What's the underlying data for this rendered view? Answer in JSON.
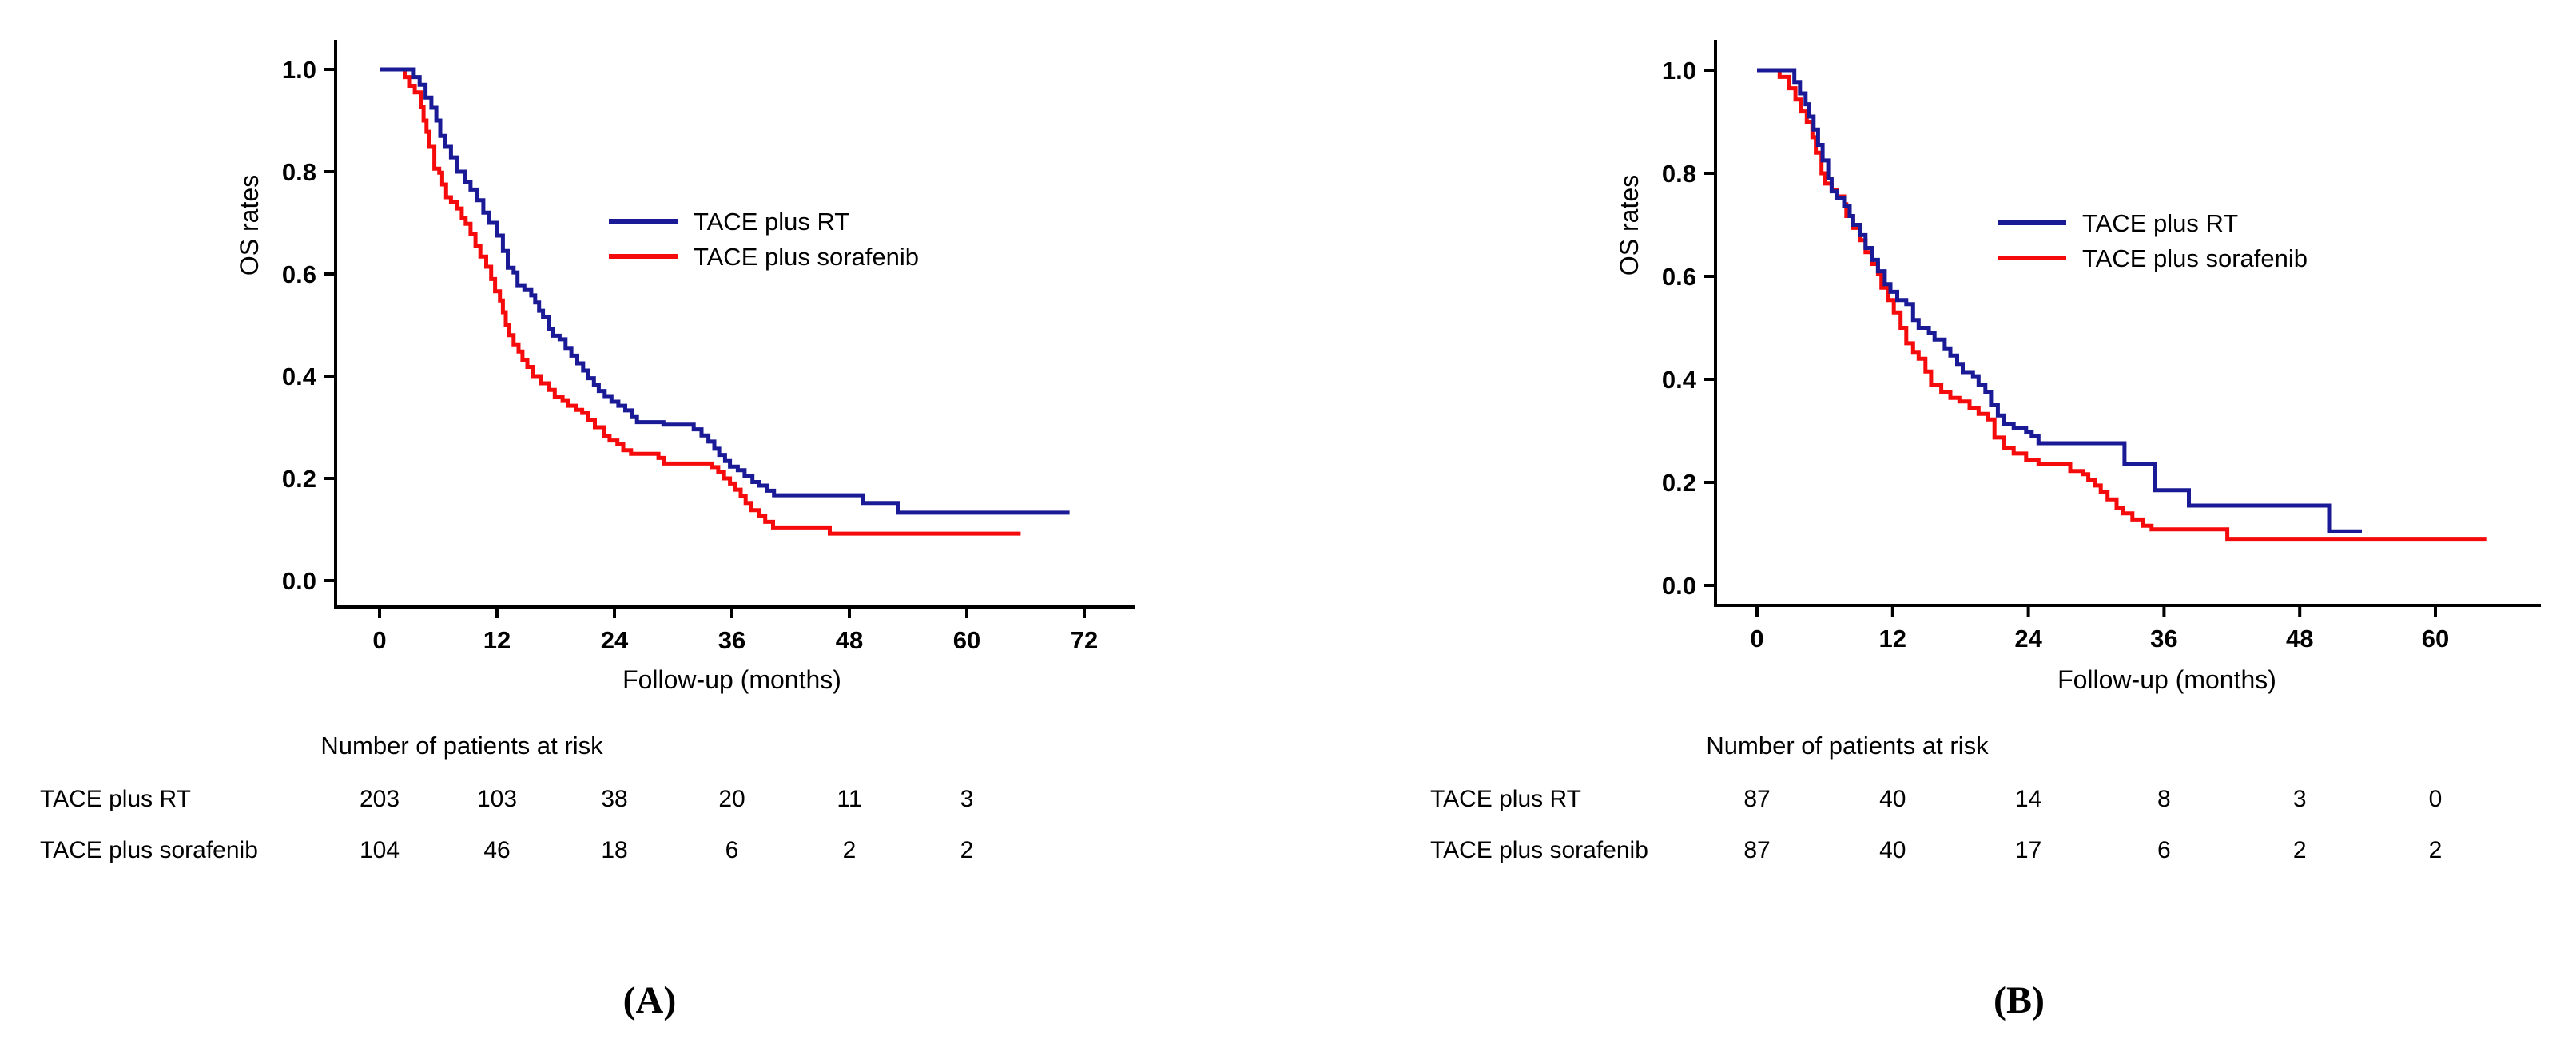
{
  "figure_title": "",
  "chart_data": [
    {
      "type": "line",
      "subtype": "kaplan-meier-step",
      "panel_label": "(A)",
      "xlabel": "Follow-up (months)",
      "ylabel": "OS rates",
      "xlim": [
        0,
        77
      ],
      "ylim": [
        0.0,
        1.05
      ],
      "grid": false,
      "legend_position": "inside-upper-right",
      "x_ticks": [
        "0",
        "12",
        "24",
        "36",
        "48",
        "60",
        "72"
      ],
      "y_ticks": [
        "1.0",
        "0.8",
        "0.6",
        "0.4",
        "0.2",
        "0.0"
      ],
      "series": [
        {
          "name": "TACE plus RT",
          "color": "#1a1a96",
          "points": [
            [
              0,
              1.0
            ],
            [
              3,
              1.0
            ],
            [
              3.5,
              0.985
            ],
            [
              4.1,
              0.97
            ],
            [
              4.7,
              0.945
            ],
            [
              5.3,
              0.925
            ],
            [
              5.8,
              0.9
            ],
            [
              6.2,
              0.87
            ],
            [
              6.7,
              0.85
            ],
            [
              7.3,
              0.828
            ],
            [
              7.9,
              0.8
            ],
            [
              8.7,
              0.78
            ],
            [
              9.3,
              0.765
            ],
            [
              10,
              0.744
            ],
            [
              10.6,
              0.72
            ],
            [
              11.2,
              0.7
            ],
            [
              12,
              0.675
            ],
            [
              12.6,
              0.645
            ],
            [
              13.1,
              0.612
            ],
            [
              13.7,
              0.603
            ],
            [
              14.1,
              0.578
            ],
            [
              14.8,
              0.57
            ],
            [
              15.5,
              0.558
            ],
            [
              15.9,
              0.544
            ],
            [
              16.3,
              0.528
            ],
            [
              16.7,
              0.516
            ],
            [
              17.3,
              0.493
            ],
            [
              17.7,
              0.479
            ],
            [
              18.4,
              0.472
            ],
            [
              19,
              0.455
            ],
            [
              19.6,
              0.44
            ],
            [
              20.2,
              0.425
            ],
            [
              20.8,
              0.411
            ],
            [
              21.3,
              0.396
            ],
            [
              21.9,
              0.383
            ],
            [
              22.4,
              0.371
            ],
            [
              23,
              0.361
            ],
            [
              23.7,
              0.35
            ],
            [
              24.4,
              0.342
            ],
            [
              25.1,
              0.333
            ],
            [
              25.8,
              0.32
            ],
            [
              26.3,
              0.31
            ],
            [
              29,
              0.305
            ],
            [
              32.1,
              0.296
            ],
            [
              32.9,
              0.284
            ],
            [
              33.6,
              0.272
            ],
            [
              34.2,
              0.258
            ],
            [
              34.7,
              0.246
            ],
            [
              35.3,
              0.234
            ],
            [
              35.8,
              0.223
            ],
            [
              36.6,
              0.216
            ],
            [
              37.3,
              0.205
            ],
            [
              38.1,
              0.193
            ],
            [
              38.8,
              0.186
            ],
            [
              39.6,
              0.176
            ],
            [
              40.3,
              0.167
            ],
            [
              49.4,
              0.152
            ],
            [
              53,
              0.133
            ],
            [
              70.5,
              0.133
            ]
          ]
        },
        {
          "name": "TACE plus sorafenib",
          "color": "#f50b0b",
          "points": [
            [
              0,
              1.0
            ],
            [
              2,
              1.0
            ],
            [
              2.6,
              0.985
            ],
            [
              3.1,
              0.968
            ],
            [
              3.6,
              0.955
            ],
            [
              4.2,
              0.927
            ],
            [
              4.5,
              0.9
            ],
            [
              4.8,
              0.878
            ],
            [
              5.1,
              0.85
            ],
            [
              5.6,
              0.806
            ],
            [
              6.1,
              0.798
            ],
            [
              6.4,
              0.775
            ],
            [
              6.8,
              0.75
            ],
            [
              7.3,
              0.74
            ],
            [
              7.9,
              0.728
            ],
            [
              8.4,
              0.71
            ],
            [
              8.8,
              0.698
            ],
            [
              9.3,
              0.678
            ],
            [
              9.8,
              0.654
            ],
            [
              10.3,
              0.634
            ],
            [
              10.9,
              0.614
            ],
            [
              11.4,
              0.59
            ],
            [
              11.8,
              0.566
            ],
            [
              12.3,
              0.548
            ],
            [
              12.6,
              0.525
            ],
            [
              12.9,
              0.5
            ],
            [
              13.2,
              0.48
            ],
            [
              13.7,
              0.462
            ],
            [
              14.2,
              0.448
            ],
            [
              14.6,
              0.432
            ],
            [
              15.1,
              0.418
            ],
            [
              15.7,
              0.4
            ],
            [
              16.5,
              0.386
            ],
            [
              17.3,
              0.373
            ],
            [
              17.9,
              0.36
            ],
            [
              18.7,
              0.353
            ],
            [
              19.3,
              0.342
            ],
            [
              20.1,
              0.334
            ],
            [
              20.7,
              0.328
            ],
            [
              21.3,
              0.314
            ],
            [
              22,
              0.3
            ],
            [
              22.9,
              0.282
            ],
            [
              23.5,
              0.274
            ],
            [
              24.3,
              0.267
            ],
            [
              24.9,
              0.255
            ],
            [
              25.7,
              0.248
            ],
            [
              28.5,
              0.24
            ],
            [
              29.1,
              0.229
            ],
            [
              34,
              0.222
            ],
            [
              34.6,
              0.212
            ],
            [
              35.2,
              0.2
            ],
            [
              35.8,
              0.19
            ],
            [
              36.3,
              0.178
            ],
            [
              36.9,
              0.165
            ],
            [
              37.4,
              0.152
            ],
            [
              38,
              0.138
            ],
            [
              38.8,
              0.126
            ],
            [
              39.4,
              0.115
            ],
            [
              40.2,
              0.104
            ],
            [
              46,
              0.092
            ],
            [
              65.5,
              0.092
            ]
          ]
        }
      ],
      "at_risk": {
        "title": "Number of patients at risk",
        "times": [
          0,
          12,
          24,
          36,
          48,
          60
        ],
        "rows": [
          {
            "label": "TACE plus RT",
            "counts": [
              "203",
              "103",
              "38",
              "20",
              "11",
              "3"
            ]
          },
          {
            "label": "TACE plus sorafenib",
            "counts": [
              "104",
              "46",
              "18",
              "6",
              "2",
              "2"
            ]
          }
        ]
      }
    },
    {
      "type": "line",
      "subtype": "kaplan-meier-step",
      "panel_label": "(B)",
      "xlabel": "Follow-up (months)",
      "ylabel": "OS rates",
      "xlim": [
        0,
        69
      ],
      "ylim": [
        0.0,
        1.05
      ],
      "grid": false,
      "legend_position": "inside-upper-right",
      "x_ticks": [
        "0",
        "12",
        "24",
        "36",
        "48",
        "60"
      ],
      "y_ticks": [
        "1.0",
        "0.8",
        "0.6",
        "0.4",
        "0.2",
        "0.0"
      ],
      "series": [
        {
          "name": "TACE plus RT",
          "color": "#1a1a96",
          "points": [
            [
              0,
              1.0
            ],
            [
              2.9,
              1.0
            ],
            [
              3.3,
              0.977
            ],
            [
              3.8,
              0.955
            ],
            [
              4.3,
              0.934
            ],
            [
              4.6,
              0.91
            ],
            [
              5,
              0.885
            ],
            [
              5.4,
              0.855
            ],
            [
              5.8,
              0.825
            ],
            [
              6.3,
              0.79
            ],
            [
              6.6,
              0.765
            ],
            [
              7.1,
              0.752
            ],
            [
              7.7,
              0.736
            ],
            [
              8.2,
              0.717
            ],
            [
              8.5,
              0.7
            ],
            [
              9.1,
              0.68
            ],
            [
              9.6,
              0.655
            ],
            [
              10.2,
              0.632
            ],
            [
              10.7,
              0.61
            ],
            [
              11.3,
              0.585
            ],
            [
              11.8,
              0.57
            ],
            [
              12.4,
              0.554
            ],
            [
              13.2,
              0.546
            ],
            [
              13.8,
              0.515
            ],
            [
              14.3,
              0.5
            ],
            [
              15.2,
              0.49
            ],
            [
              15.7,
              0.477
            ],
            [
              16.6,
              0.46
            ],
            [
              17.1,
              0.446
            ],
            [
              17.7,
              0.43
            ],
            [
              18.2,
              0.414
            ],
            [
              19.1,
              0.406
            ],
            [
              19.6,
              0.39
            ],
            [
              20.2,
              0.376
            ],
            [
              20.7,
              0.35
            ],
            [
              21.3,
              0.33
            ],
            [
              21.8,
              0.314
            ],
            [
              22.7,
              0.306
            ],
            [
              23.8,
              0.298
            ],
            [
              24.3,
              0.29
            ],
            [
              24.9,
              0.276
            ],
            [
              32,
              0.276
            ],
            [
              32.5,
              0.235
            ],
            [
              35.2,
              0.185
            ],
            [
              38.2,
              0.155
            ],
            [
              50.4,
              0.155
            ],
            [
              50.6,
              0.105
            ],
            [
              53.5,
              0.105
            ]
          ]
        },
        {
          "name": "TACE plus sorafenib",
          "color": "#f50b0b",
          "points": [
            [
              0,
              1.0
            ],
            [
              2,
              0.987
            ],
            [
              2.8,
              0.965
            ],
            [
              3.4,
              0.943
            ],
            [
              3.9,
              0.92
            ],
            [
              4.4,
              0.9
            ],
            [
              4.9,
              0.87
            ],
            [
              5.2,
              0.84
            ],
            [
              5.7,
              0.8
            ],
            [
              6,
              0.78
            ],
            [
              6.6,
              0.768
            ],
            [
              7.1,
              0.755
            ],
            [
              7.7,
              0.74
            ],
            [
              7.9,
              0.717
            ],
            [
              8.5,
              0.694
            ],
            [
              9.1,
              0.67
            ],
            [
              9.6,
              0.647
            ],
            [
              10.2,
              0.624
            ],
            [
              10.7,
              0.605
            ],
            [
              11,
              0.578
            ],
            [
              11.6,
              0.554
            ],
            [
              12.1,
              0.53
            ],
            [
              12.7,
              0.5
            ],
            [
              13.2,
              0.47
            ],
            [
              13.8,
              0.453
            ],
            [
              14.3,
              0.44
            ],
            [
              14.9,
              0.415
            ],
            [
              15.4,
              0.39
            ],
            [
              16.3,
              0.376
            ],
            [
              17.1,
              0.364
            ],
            [
              17.9,
              0.357
            ],
            [
              18.8,
              0.345
            ],
            [
              19.6,
              0.333
            ],
            [
              20.4,
              0.322
            ],
            [
              21,
              0.287
            ],
            [
              21.8,
              0.267
            ],
            [
              22.7,
              0.256
            ],
            [
              23.8,
              0.244
            ],
            [
              24.9,
              0.236
            ],
            [
              27.7,
              0.222
            ],
            [
              28.8,
              0.216
            ],
            [
              29.3,
              0.205
            ],
            [
              29.9,
              0.194
            ],
            [
              30.4,
              0.182
            ],
            [
              31,
              0.167
            ],
            [
              31.8,
              0.151
            ],
            [
              32.4,
              0.14
            ],
            [
              33.2,
              0.128
            ],
            [
              34.1,
              0.116
            ],
            [
              34.9,
              0.109
            ],
            [
              41.6,
              0.089
            ],
            [
              64.5,
              0.089
            ]
          ]
        }
      ],
      "at_risk": {
        "title": "Number of patients at risk",
        "times": [
          0,
          12,
          24,
          36,
          48,
          60
        ],
        "rows": [
          {
            "label": "TACE plus RT",
            "counts": [
              "87",
              "40",
              "14",
              "8",
              "3",
              "0"
            ]
          },
          {
            "label": "TACE plus sorafenib",
            "counts": [
              "87",
              "40",
              "17",
              "6",
              "2",
              "2"
            ]
          }
        ]
      }
    }
  ]
}
